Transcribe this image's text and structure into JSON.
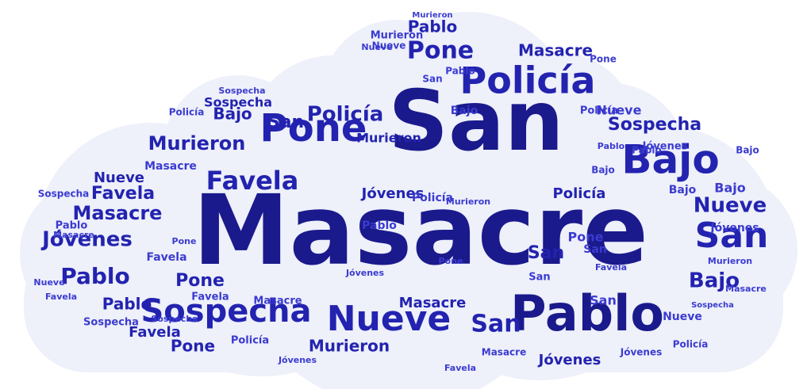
{
  "colors": {
    "background": "#ffffff",
    "cloud_fill": "#eef0fa",
    "dark": "#1a1a8c",
    "mid": "#2323b0",
    "light": "#3b3bd0"
  },
  "words": [
    {
      "text": "Masacre",
      "tone": "dark"
    },
    {
      "text": "San",
      "tone": "dark"
    },
    {
      "text": "Pablo",
      "tone": "dark"
    },
    {
      "text": "Nueve",
      "tone": "mid"
    },
    {
      "text": "Policía",
      "tone": "mid"
    },
    {
      "text": "Bajo",
      "tone": "mid"
    },
    {
      "text": "Sospecha",
      "tone": "mid"
    },
    {
      "text": "Pone",
      "tone": "mid"
    },
    {
      "text": "San",
      "tone": "mid"
    },
    {
      "text": "Favela",
      "tone": "mid"
    },
    {
      "text": "Murieron",
      "tone": "mid"
    },
    {
      "text": "Jóvenes",
      "tone": "mid"
    },
    {
      "text": "Masacre",
      "tone": "mid"
    },
    {
      "text": "Pablo",
      "tone": "mid"
    },
    {
      "text": "Policía",
      "tone": "mid"
    },
    {
      "text": "San",
      "tone": "mid"
    },
    {
      "text": "Pone",
      "tone": "mid"
    },
    {
      "text": "Nueve",
      "tone": "mid"
    },
    {
      "text": "Bajo",
      "tone": "mid"
    },
    {
      "text": "Jóvenes",
      "tone": "mid"
    },
    {
      "text": "Masacre",
      "tone": "mid"
    },
    {
      "text": "Sospecha",
      "tone": "mid"
    },
    {
      "text": "Favela",
      "tone": "mid"
    },
    {
      "text": "Pablo",
      "tone": "mid"
    },
    {
      "text": "Murieron",
      "tone": "mid"
    },
    {
      "text": "San",
      "tone": "mid"
    },
    {
      "text": "Pone",
      "tone": "mid"
    },
    {
      "text": "Policía",
      "tone": "mid"
    },
    {
      "text": "Jóvenes",
      "tone": "mid"
    },
    {
      "text": "Bajo",
      "tone": "mid"
    },
    {
      "text": "Nueve",
      "tone": "mid"
    },
    {
      "text": "Favela",
      "tone": "mid"
    },
    {
      "text": "Masacre",
      "tone": "mid"
    },
    {
      "text": "Sospecha",
      "tone": "mid"
    },
    {
      "text": "Pablo",
      "tone": "mid"
    },
    {
      "text": "Murieron",
      "tone": "mid"
    },
    {
      "text": "San",
      "tone": "mid"
    },
    {
      "text": "Pone",
      "tone": "mid"
    },
    {
      "text": "Policía",
      "tone": "light"
    },
    {
      "text": "Jóvenes",
      "tone": "light"
    },
    {
      "text": "Bajo",
      "tone": "light"
    },
    {
      "text": "Nueve",
      "tone": "light"
    },
    {
      "text": "Favela",
      "tone": "light"
    },
    {
      "text": "Masacre",
      "tone": "light"
    },
    {
      "text": "Sospecha",
      "tone": "light"
    },
    {
      "text": "Pablo",
      "tone": "light"
    },
    {
      "text": "Murieron",
      "tone": "light"
    },
    {
      "text": "San",
      "tone": "light"
    },
    {
      "text": "Pone",
      "tone": "light"
    },
    {
      "text": "Policía",
      "tone": "light"
    },
    {
      "text": "Jóvenes",
      "tone": "light"
    },
    {
      "text": "Bajo",
      "tone": "light"
    },
    {
      "text": "Nueve",
      "tone": "light"
    },
    {
      "text": "Favela",
      "tone": "light"
    },
    {
      "text": "Masacre",
      "tone": "light"
    },
    {
      "text": "Sospecha",
      "tone": "light"
    },
    {
      "text": "Pablo",
      "tone": "light"
    },
    {
      "text": "Murieron",
      "tone": "light"
    },
    {
      "text": "San",
      "tone": "light"
    },
    {
      "text": "Pone",
      "tone": "light"
    },
    {
      "text": "Policía",
      "tone": "light"
    },
    {
      "text": "Jóvenes",
      "tone": "light"
    },
    {
      "text": "Bajo",
      "tone": "light"
    },
    {
      "text": "Nueve",
      "tone": "light"
    },
    {
      "text": "Favela",
      "tone": "light"
    },
    {
      "text": "Masacre",
      "tone": "light"
    },
    {
      "text": "Sospecha",
      "tone": "light"
    },
    {
      "text": "Pablo",
      "tone": "light"
    },
    {
      "text": "Murieron",
      "tone": "light"
    },
    {
      "text": "San",
      "tone": "light"
    },
    {
      "text": "Pone",
      "tone": "light"
    },
    {
      "text": "Policía",
      "tone": "light"
    },
    {
      "text": "Jóvenes",
      "tone": "light"
    },
    {
      "text": "Bajo",
      "tone": "light"
    },
    {
      "text": "Nueve",
      "tone": "light"
    },
    {
      "text": "Favela",
      "tone": "light"
    },
    {
      "text": "Masacre",
      "tone": "light"
    },
    {
      "text": "Sospecha",
      "tone": "light"
    },
    {
      "text": "Pablo",
      "tone": "light"
    },
    {
      "text": "Murieron",
      "tone": "light"
    },
    {
      "text": "San",
      "tone": "light"
    },
    {
      "text": "Pone",
      "tone": "light"
    },
    {
      "text": "Policía",
      "tone": "light"
    },
    {
      "text": "Jóvenes",
      "tone": "light"
    },
    {
      "text": "Bajo",
      "tone": "light"
    },
    {
      "text": "Nueve",
      "tone": "light"
    },
    {
      "text": "Favela",
      "tone": "light"
    },
    {
      "text": "Masacre",
      "tone": "light"
    },
    {
      "text": "Sospecha",
      "tone": "light"
    },
    {
      "text": "Pablo",
      "tone": "light"
    }
  ]
}
